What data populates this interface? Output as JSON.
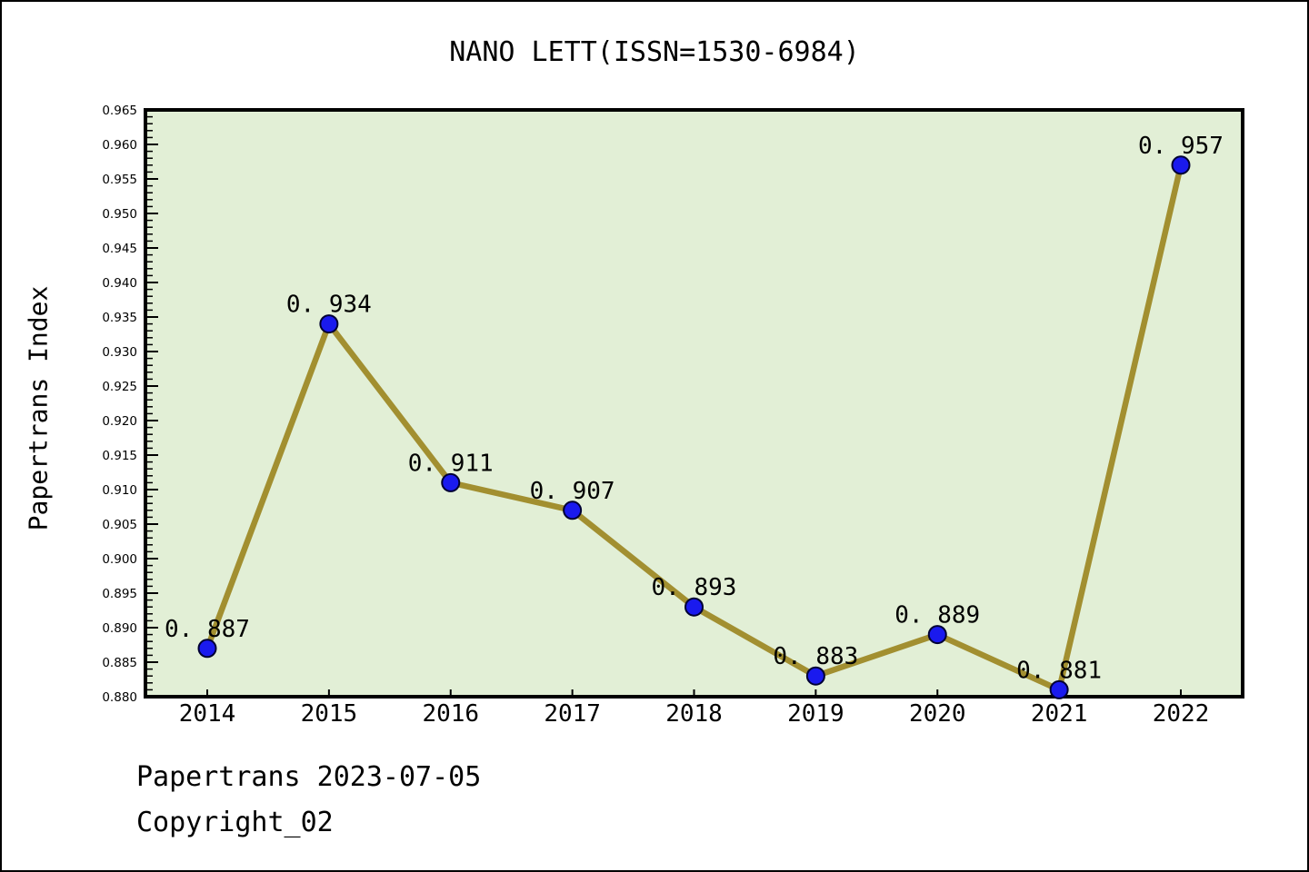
{
  "page": {
    "title": "NANO LETT(ISSN=1530-6984)",
    "footer_line1": "Papertrans 2023-07-05",
    "footer_line2": "Copyright_02"
  },
  "chart_data": {
    "type": "line",
    "title": "NANO LETT(ISSN=1530-6984)",
    "xlabel": "",
    "ylabel": "Papertrans Index",
    "categories": [
      "2014",
      "2015",
      "2016",
      "2017",
      "2018",
      "2019",
      "2020",
      "2021",
      "2022"
    ],
    "series": [
      {
        "name": "Papertrans Index",
        "values": [
          0.887,
          0.934,
          0.911,
          0.907,
          0.893,
          0.883,
          0.889,
          0.881,
          0.957
        ]
      }
    ],
    "point_labels": [
      "0. 887",
      "0. 934",
      "0. 911",
      "0. 907",
      "0. 893",
      "0. 883",
      "0. 889",
      "0. 881",
      "0. 957"
    ],
    "ylim": [
      0.88,
      0.965
    ],
    "y_major_step": 0.005,
    "y_minor_step": 0.001,
    "y_tick_labels": [
      "0.880",
      "0.885",
      "0.890",
      "0.895",
      "0.900",
      "0.905",
      "0.910",
      "0.915",
      "0.920",
      "0.925",
      "0.930",
      "0.935",
      "0.940",
      "0.945",
      "0.950",
      "0.955",
      "0.960",
      "0.965"
    ],
    "grid": false,
    "legend_position": "none",
    "colors": {
      "line": "#a28f30",
      "marker_fill": "#1a1aee",
      "marker_edge": "#000033",
      "plot_background": "#e2efd6",
      "axis": "#000000",
      "text": "#000000",
      "page_background": "#ffffff"
    }
  }
}
